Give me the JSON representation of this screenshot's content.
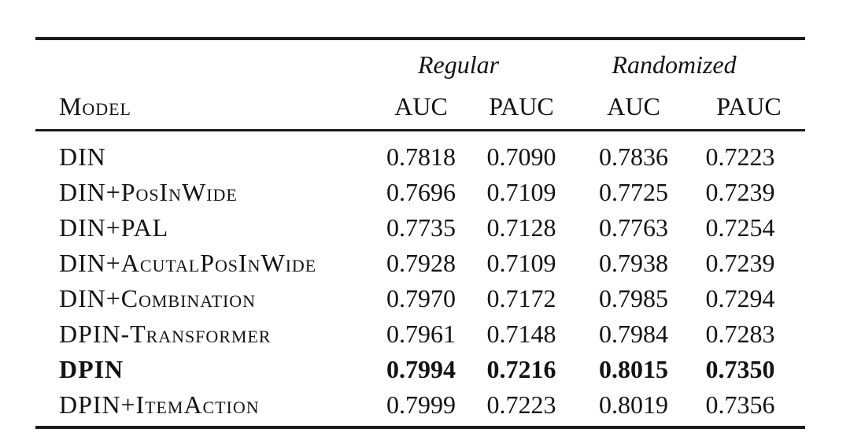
{
  "page": {
    "background_color": "#ffffff",
    "text_color": "#131313",
    "rule_color": "#1c1c1c"
  },
  "table": {
    "header": {
      "model_label": "Model",
      "groups": [
        {
          "label": "Regular",
          "sub_columns": [
            "AUC",
            "PAUC"
          ]
        },
        {
          "label": "Randomized",
          "sub_columns": [
            "AUC",
            "PAUC"
          ]
        }
      ]
    },
    "rows": [
      {
        "model": "DIN",
        "emphasis": "normal",
        "values": [
          "0.7818",
          "0.7090",
          "0.7836",
          "0.7223"
        ]
      },
      {
        "model": "DIN+PosInWide",
        "emphasis": "normal",
        "values": [
          "0.7696",
          "0.7109",
          "0.7725",
          "0.7239"
        ]
      },
      {
        "model": "DIN+PAL",
        "emphasis": "normal",
        "values": [
          "0.7735",
          "0.7128",
          "0.7763",
          "0.7254"
        ]
      },
      {
        "model": "DIN+AcutalPosInWide",
        "emphasis": "normal",
        "values": [
          "0.7928",
          "0.7109",
          "0.7938",
          "0.7239"
        ]
      },
      {
        "model": "DIN+Combination",
        "emphasis": "normal",
        "values": [
          "0.7970",
          "0.7172",
          "0.7985",
          "0.7294"
        ]
      },
      {
        "model": "DPIN-Transformer",
        "emphasis": "normal",
        "values": [
          "0.7961",
          "0.7148",
          "0.7984",
          "0.7283"
        ]
      },
      {
        "model": "DPIN",
        "emphasis": "bold",
        "values": [
          "0.7994",
          "0.7216",
          "0.8015",
          "0.7350"
        ]
      },
      {
        "model": "DPIN+ItemAction",
        "emphasis": "normal",
        "values": [
          "0.7999",
          "0.7223",
          "0.8019",
          "0.7356"
        ]
      }
    ]
  }
}
